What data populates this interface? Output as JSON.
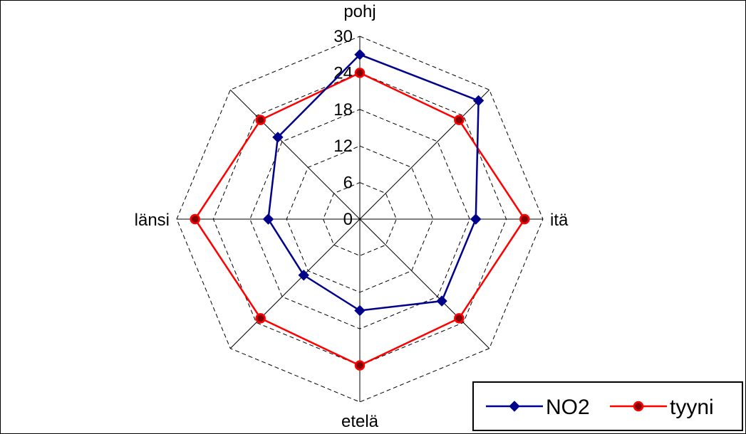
{
  "chart_data": {
    "type": "radar",
    "axes": [
      "pohj",
      "",
      "itä",
      "",
      "etelä",
      "",
      "länsi",
      ""
    ],
    "rlim": [
      0,
      30
    ],
    "rticks": [
      "0",
      "6",
      "12",
      "18",
      "24",
      "30"
    ],
    "grid": true,
    "legend_position": "bottom-right",
    "series": [
      {
        "name": "NO2",
        "color": "#00008B",
        "marker": "diamond",
        "values": [
          27,
          27.5,
          19,
          19,
          15,
          13,
          15,
          19
        ]
      },
      {
        "name": "tyyni",
        "color": "#FF0000",
        "marker": "circle",
        "values": [
          24,
          23,
          27,
          23,
          24,
          23,
          27,
          23
        ]
      }
    ]
  }
}
